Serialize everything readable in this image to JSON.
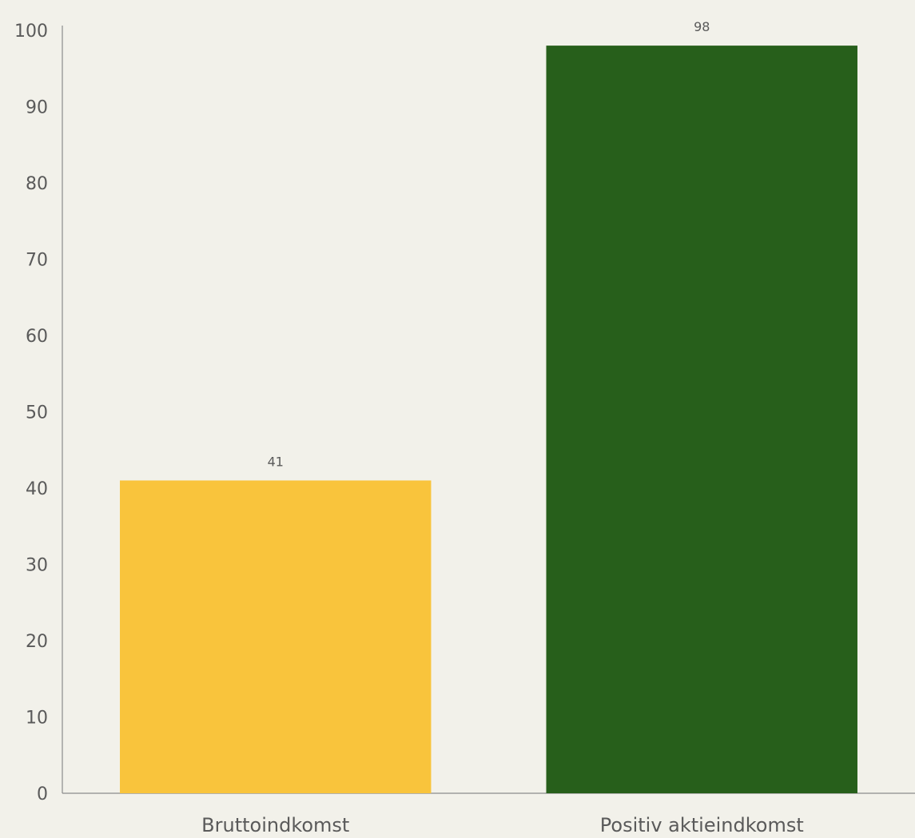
{
  "chart_data": {
    "type": "bar",
    "categories": [
      "Bruttoindkomst",
      "Positiv aktieindkomst"
    ],
    "values": [
      41,
      98
    ],
    "data_labels": [
      "41",
      "98"
    ],
    "bar_colors": [
      "#f9c43c",
      "#275f1b"
    ],
    "ylim": [
      0,
      100
    ],
    "yticks": [
      0,
      10,
      20,
      30,
      40,
      50,
      60,
      70,
      80,
      90,
      100
    ],
    "grid": false,
    "title": "",
    "xlabel": "",
    "ylabel": ""
  },
  "colors": {
    "background": "#f2f1ea",
    "axis": "#8c8c8c",
    "text": "#5a5a5a"
  }
}
